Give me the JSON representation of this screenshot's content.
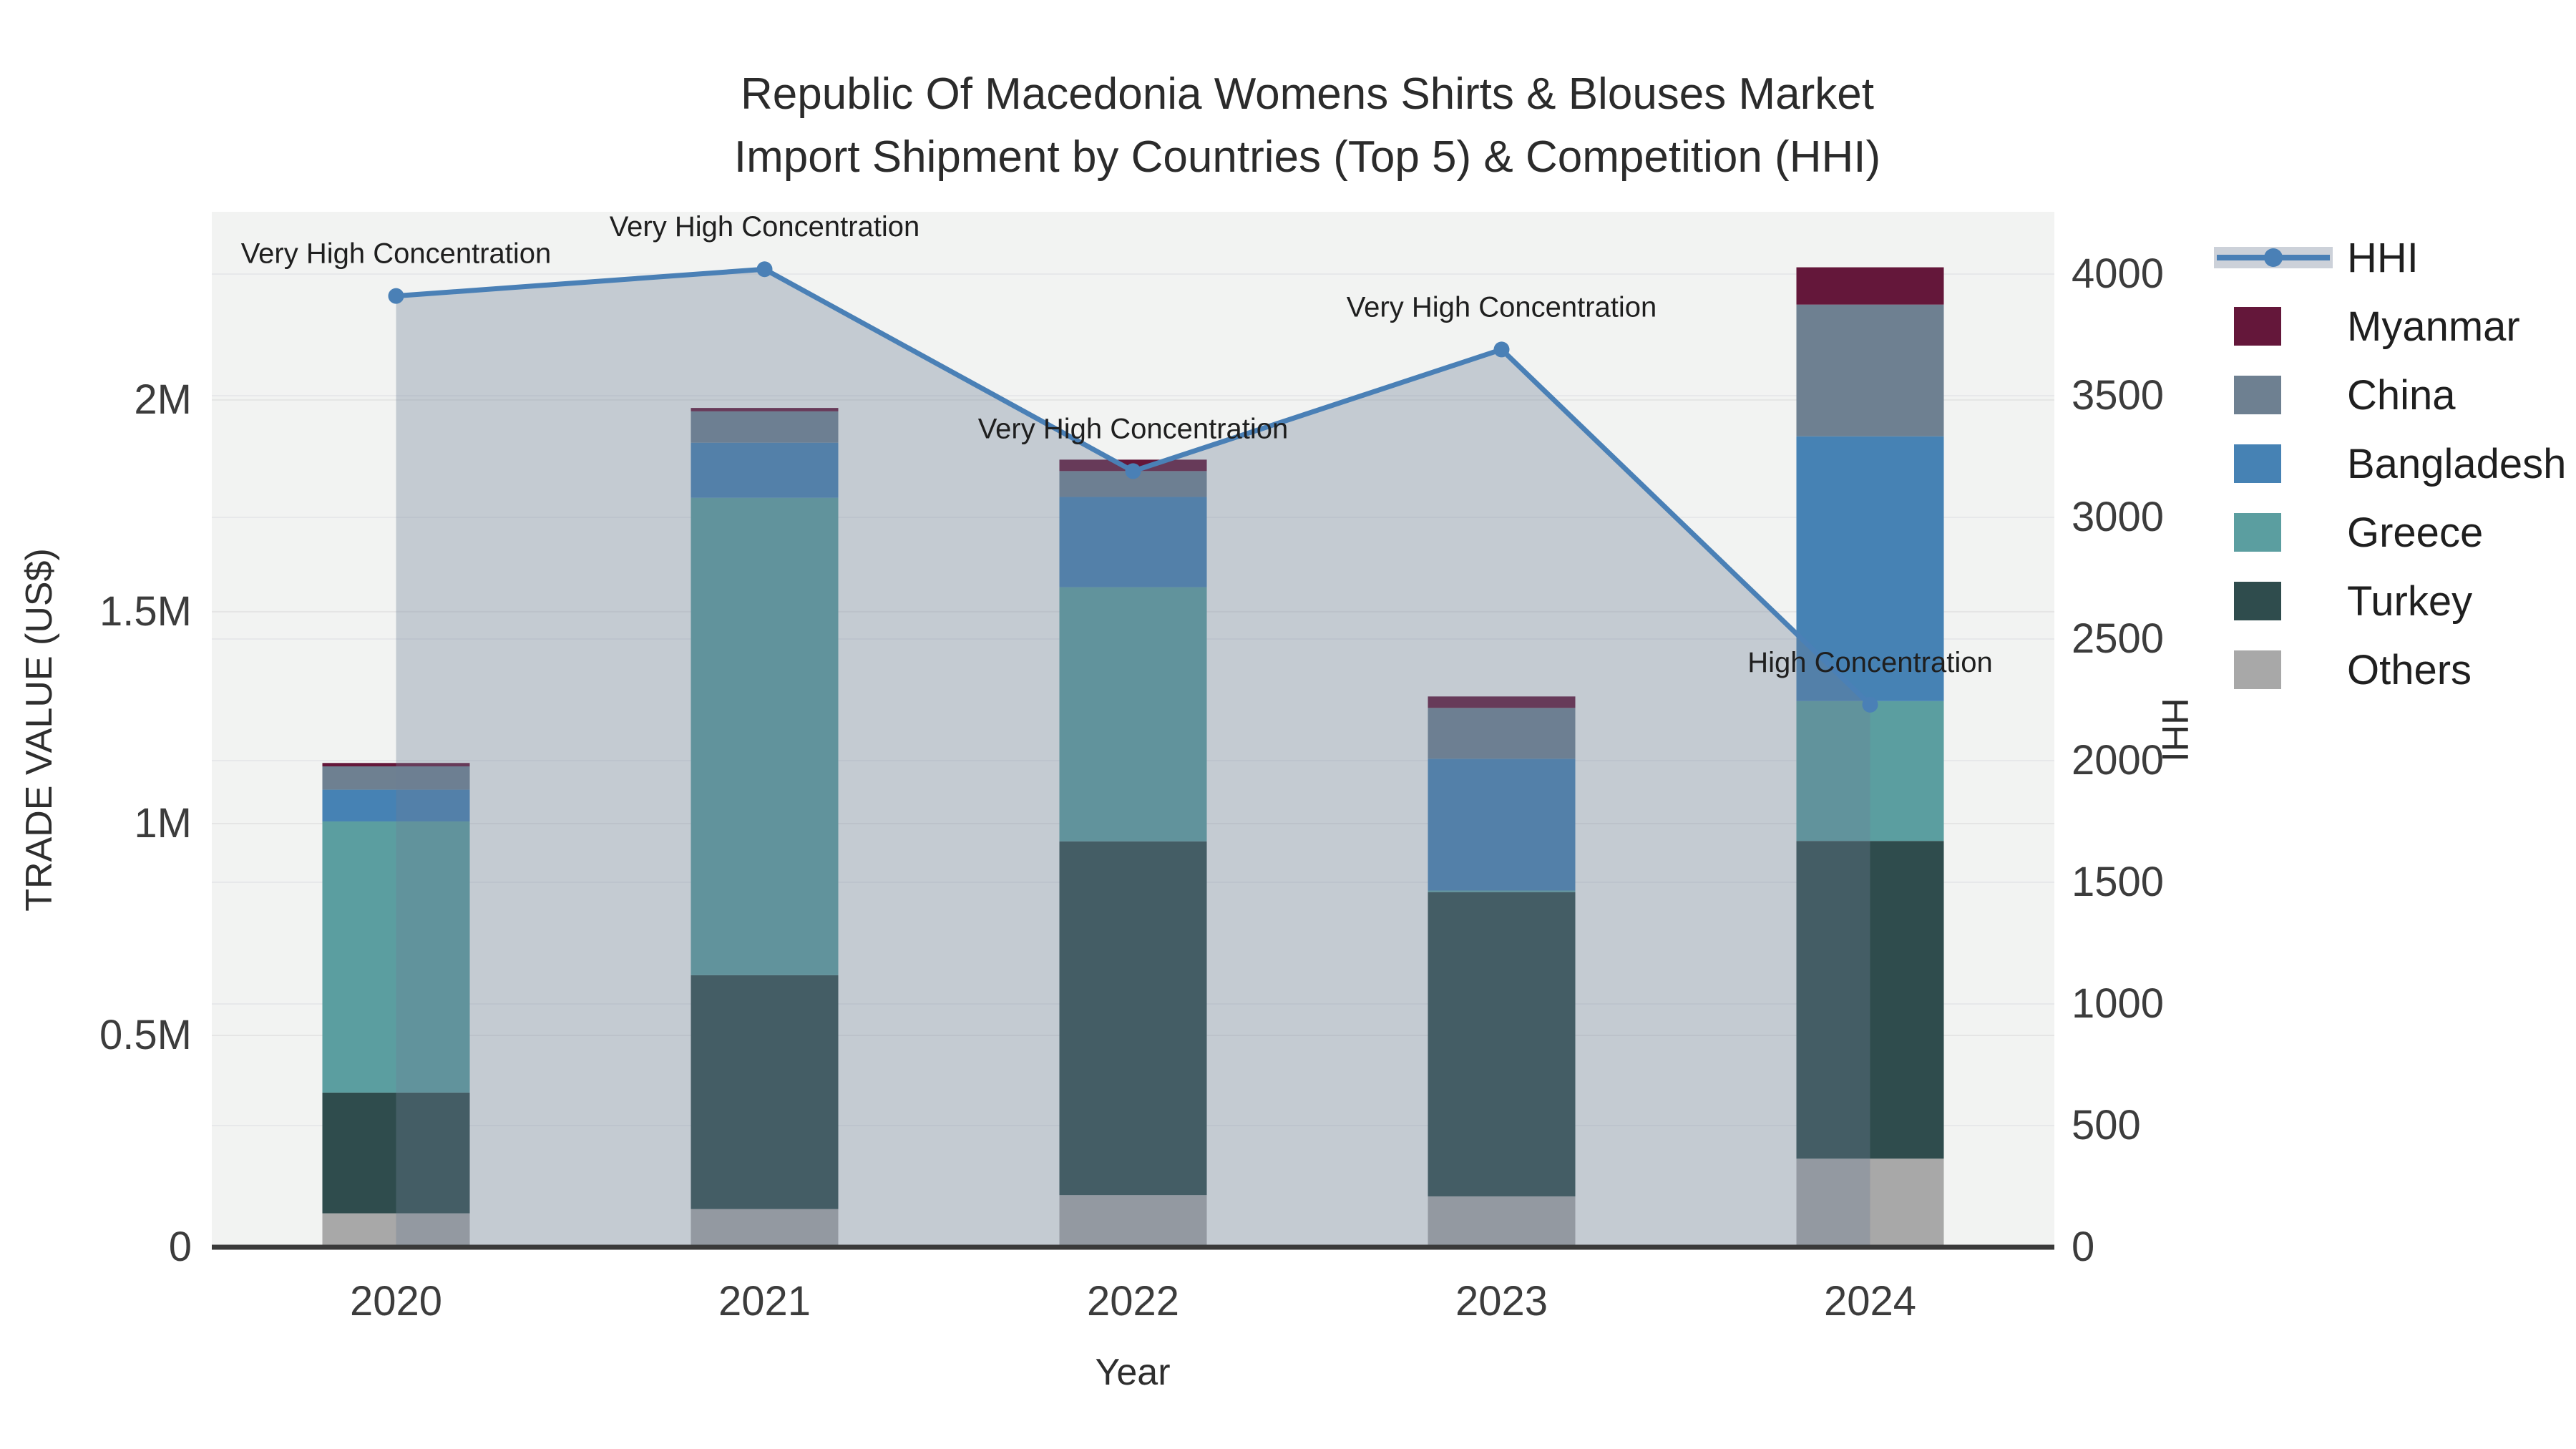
{
  "title": {
    "line1": "Republic Of Macedonia Womens Shirts & Blouses Market",
    "line2": "Import Shipment by Countries (Top 5) & Competition (HHI)"
  },
  "chart_data": {
    "type": "bar+line",
    "subtype": "stacked bars (trade value, left axis) with HHI line + area fill (right axis)",
    "x_title": "Year",
    "y_left_title": "TRADE VALUE (US$)",
    "y_right_title": "HHI",
    "categories": [
      "2020",
      "2021",
      "2022",
      "2023",
      "2024"
    ],
    "bar_series": [
      {
        "name": "Others",
        "color": "#a8a8a8",
        "values": [
          80000,
          90000,
          123000,
          120000,
          209000
        ]
      },
      {
        "name": "Turkey",
        "color": "#2f4c4d",
        "values": [
          285000,
          552000,
          835000,
          718000,
          750000
        ]
      },
      {
        "name": "Greece",
        "color": "#5b9ea0",
        "values": [
          640000,
          1127000,
          600000,
          4000,
          330000
        ]
      },
      {
        "name": "Bangladesh",
        "color": "#4682b4",
        "values": [
          75000,
          130000,
          213000,
          311000,
          625000
        ]
      },
      {
        "name": "China",
        "color": "#6e8091",
        "values": [
          55000,
          74000,
          61000,
          120000,
          311000
        ]
      },
      {
        "name": "Myanmar",
        "color": "#64173a",
        "values": [
          8000,
          8000,
          27000,
          27000,
          88000
        ]
      }
    ],
    "line_series": {
      "name": "HHI",
      "color": "#4a80b6",
      "fill_color": "rgba(108,127,150,0.34)",
      "values": [
        3910,
        4020,
        3190,
        3690,
        2230
      ]
    },
    "annotations": [
      {
        "text": "Very High Concentration",
        "x_index": 0
      },
      {
        "text": "Very High Concentration",
        "x_index": 1
      },
      {
        "text": "Very High Concentration",
        "x_index": 2
      },
      {
        "text": "Very High Concentration",
        "x_index": 3
      },
      {
        "text": "High Concentration",
        "x_index": 4
      }
    ],
    "y_left": {
      "max": 2444000,
      "ticks": [
        {
          "label": "0",
          "value": 0
        },
        {
          "label": "0.5M",
          "value": 500000
        },
        {
          "label": "1M",
          "value": 1000000
        },
        {
          "label": "1.5M",
          "value": 1500000
        },
        {
          "label": "2M",
          "value": 2000000
        }
      ]
    },
    "y_right": {
      "max": 4256,
      "ticks": [
        {
          "label": "0",
          "value": 0
        },
        {
          "label": "500",
          "value": 500
        },
        {
          "label": "1000",
          "value": 1000
        },
        {
          "label": "1500",
          "value": 1500
        },
        {
          "label": "2000",
          "value": 2000
        },
        {
          "label": "2500",
          "value": 2500
        },
        {
          "label": "3000",
          "value": 3000
        },
        {
          "label": "3500",
          "value": 3500
        },
        {
          "label": "4000",
          "value": 4000
        }
      ]
    },
    "legend_position": "top-right",
    "grid": true,
    "plot_bg": "#f2f3f2"
  },
  "legend": {
    "items": [
      {
        "label": "HHI",
        "type": "line",
        "color": "#4a80b6",
        "band_color": "#ccd1d9"
      },
      {
        "label": "Myanmar",
        "type": "square",
        "color": "#64173a"
      },
      {
        "label": "China",
        "type": "square",
        "color": "#6e8091"
      },
      {
        "label": "Bangladesh",
        "type": "square",
        "color": "#4682b4"
      },
      {
        "label": "Greece",
        "type": "square",
        "color": "#5b9ea0"
      },
      {
        "label": "Turkey",
        "type": "square",
        "color": "#2f4c4d"
      },
      {
        "label": "Others",
        "type": "square",
        "color": "#a8a8a8"
      }
    ]
  }
}
